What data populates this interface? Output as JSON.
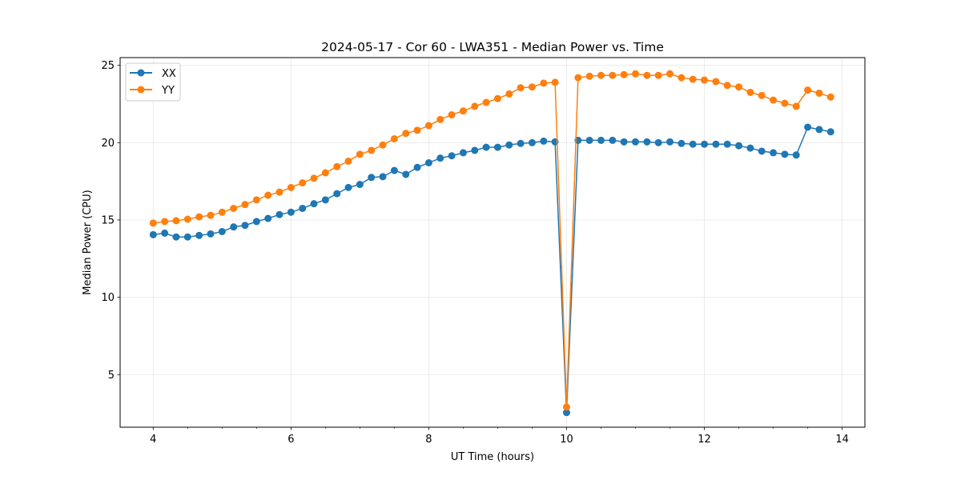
{
  "chart_data": {
    "type": "line",
    "title": "2024-05-17 - Cor 60 - LWA351 - Median Power vs. Time",
    "xlabel": "UT Time (hours)",
    "ylabel": "Median Power (CPU)",
    "xlim": [
      3.52,
      14.33
    ],
    "ylim": [
      1.6,
      25.5
    ],
    "xticks": [
      4,
      6,
      8,
      10,
      12,
      14
    ],
    "yticks": [
      5,
      10,
      15,
      20,
      25
    ],
    "xtick_labels": [
      "4",
      "6",
      "8",
      "10",
      "12",
      "14"
    ],
    "ytick_labels": [
      "5",
      "10",
      "15",
      "20",
      "25"
    ],
    "x_minor_step": 0.5,
    "grid": true,
    "legend_position": "upper-left",
    "x": [
      4.0,
      4.167,
      4.333,
      4.5,
      4.667,
      4.833,
      5.0,
      5.167,
      5.333,
      5.5,
      5.667,
      5.833,
      6.0,
      6.167,
      6.333,
      6.5,
      6.667,
      6.833,
      7.0,
      7.167,
      7.333,
      7.5,
      7.667,
      7.833,
      8.0,
      8.167,
      8.333,
      8.5,
      8.667,
      8.833,
      9.0,
      9.167,
      9.333,
      9.5,
      9.667,
      9.833,
      10.0,
      10.167,
      10.333,
      10.5,
      10.667,
      10.833,
      11.0,
      11.167,
      11.333,
      11.5,
      11.667,
      11.833,
      12.0,
      12.167,
      12.333,
      12.5,
      12.667,
      12.833,
      13.0,
      13.167,
      13.333,
      13.5,
      13.667,
      13.833
    ],
    "series": [
      {
        "name": "XX",
        "color": "#1f77b4",
        "values": [
          14.05,
          14.15,
          13.9,
          13.9,
          14.0,
          14.1,
          14.25,
          14.55,
          14.65,
          14.9,
          15.1,
          15.35,
          15.5,
          15.75,
          16.05,
          16.3,
          16.7,
          17.1,
          17.3,
          17.75,
          17.8,
          18.2,
          17.95,
          18.4,
          18.7,
          19.0,
          19.15,
          19.35,
          19.5,
          19.7,
          19.7,
          19.85,
          19.95,
          20.0,
          20.1,
          20.05,
          2.55,
          20.15,
          20.15,
          20.15,
          20.15,
          20.05,
          20.05,
          20.05,
          20.0,
          20.05,
          19.95,
          19.9,
          19.9,
          19.9,
          19.9,
          19.8,
          19.65,
          19.45,
          19.35,
          19.25,
          19.2,
          21.0,
          20.85,
          20.7
        ]
      },
      {
        "name": "YY",
        "color": "#ff7f0e",
        "values": [
          14.8,
          14.9,
          14.95,
          15.05,
          15.2,
          15.3,
          15.5,
          15.75,
          16.0,
          16.3,
          16.6,
          16.8,
          17.1,
          17.4,
          17.7,
          18.05,
          18.45,
          18.8,
          19.25,
          19.5,
          19.85,
          20.25,
          20.6,
          20.8,
          21.1,
          21.5,
          21.8,
          22.05,
          22.35,
          22.6,
          22.85,
          23.15,
          23.55,
          23.6,
          23.85,
          23.9,
          2.9,
          24.2,
          24.3,
          24.35,
          24.35,
          24.4,
          24.45,
          24.35,
          24.35,
          24.45,
          24.2,
          24.1,
          24.05,
          23.95,
          23.7,
          23.6,
          23.25,
          23.05,
          22.75,
          22.55,
          22.35,
          23.4,
          23.2,
          22.95
        ]
      }
    ]
  }
}
